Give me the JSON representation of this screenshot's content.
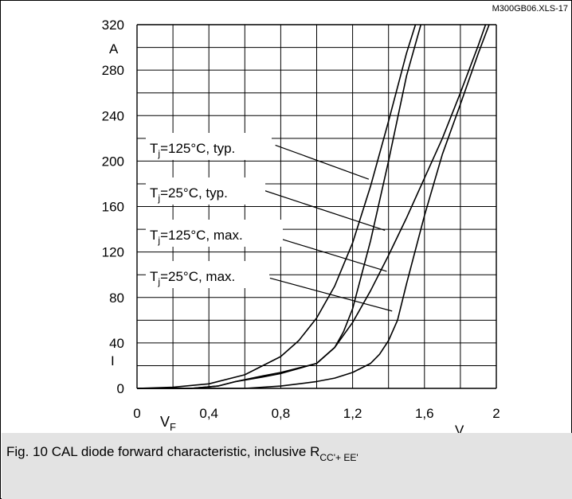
{
  "chart_data": {
    "type": "line",
    "code": "M300GB06.XLS-17",
    "ylabel_unit": "A",
    "ylabel_symbol": "I",
    "xlabel_symbol": "V",
    "xlabel_sub": "F",
    "xlabel_unit": "V",
    "xlim": [
      0,
      2
    ],
    "ylim": [
      0,
      320
    ],
    "x_ticks": [
      {
        "value": 0,
        "label": "0"
      },
      {
        "value": 0.4,
        "label": "0,4"
      },
      {
        "value": 0.8,
        "label": "0,8"
      },
      {
        "value": 1.2,
        "label": "1,2"
      },
      {
        "value": 1.6,
        "label": "1,6"
      },
      {
        "value": 2,
        "label": "2"
      }
    ],
    "y_ticks": [
      {
        "value": 0,
        "label": "0"
      },
      {
        "value": 40,
        "label": "40"
      },
      {
        "value": 80,
        "label": "80"
      },
      {
        "value": 120,
        "label": "120"
      },
      {
        "value": 160,
        "label": "160"
      },
      {
        "value": 200,
        "label": "200"
      },
      {
        "value": 240,
        "label": "240"
      },
      {
        "value": 280,
        "label": "280"
      },
      {
        "value": 320,
        "label": "320"
      }
    ],
    "grid": true,
    "series": [
      {
        "label_main": "T",
        "label_sub": "j",
        "label_rest": "=125°C, typ.",
        "x": [
          0,
          0.2,
          0.4,
          0.6,
          0.8,
          0.9,
          1.0,
          1.1,
          1.2,
          1.3,
          1.4,
          1.5,
          1.55
        ],
        "y": [
          0,
          1,
          4,
          12,
          28,
          42,
          62,
          90,
          128,
          178,
          235,
          295,
          320
        ]
      },
      {
        "label_main": "T",
        "label_sub": "j",
        "label_rest": "=25°C, typ.",
        "x": [
          0,
          0.3,
          0.45,
          0.55,
          0.7,
          0.8,
          1.0,
          1.1,
          1.15,
          1.2,
          1.3,
          1.4,
          1.5,
          1.58
        ],
        "y": [
          0,
          0,
          2,
          6,
          11,
          14,
          22,
          36,
          50,
          70,
          130,
          200,
          275,
          320
        ]
      },
      {
        "label_main": "T",
        "label_sub": "j",
        "label_rest": "=125°C, max.",
        "x": [
          0,
          0.3,
          0.45,
          0.55,
          0.7,
          0.8,
          1.0,
          1.1,
          1.2,
          1.3,
          1.4,
          1.5,
          1.6,
          1.7,
          1.8,
          1.9,
          1.94
        ],
        "y": [
          0,
          0,
          2,
          6,
          10,
          13,
          22,
          36,
          58,
          86,
          117,
          150,
          185,
          220,
          260,
          302,
          320
        ]
      },
      {
        "label_main": "T",
        "label_sub": "j",
        "label_rest": "=25°C, max.",
        "x": [
          0,
          0.6,
          0.8,
          0.9,
          1.0,
          1.1,
          1.2,
          1.3,
          1.35,
          1.4,
          1.45,
          1.5,
          1.6,
          1.7,
          1.8,
          1.9,
          1.96
        ],
        "y": [
          0,
          0,
          2,
          4,
          6,
          9,
          14,
          22,
          30,
          42,
          60,
          92,
          152,
          206,
          250,
          295,
          320
        ]
      }
    ],
    "leaders": [
      {
        "from": [
          0.77,
          214
        ],
        "to": [
          1.29,
          184
        ]
      },
      {
        "from": [
          0.71,
          174
        ],
        "to": [
          1.38,
          139
        ]
      },
      {
        "from": [
          0.77,
          133
        ],
        "to": [
          1.39,
          103
        ]
      },
      {
        "from": [
          0.74,
          97
        ],
        "to": [
          1.42,
          68
        ]
      }
    ]
  },
  "caption": {
    "text": "Fig. 10 CAL diode forward characteristic, inclusive R",
    "sub": "CC'+ EE'"
  }
}
